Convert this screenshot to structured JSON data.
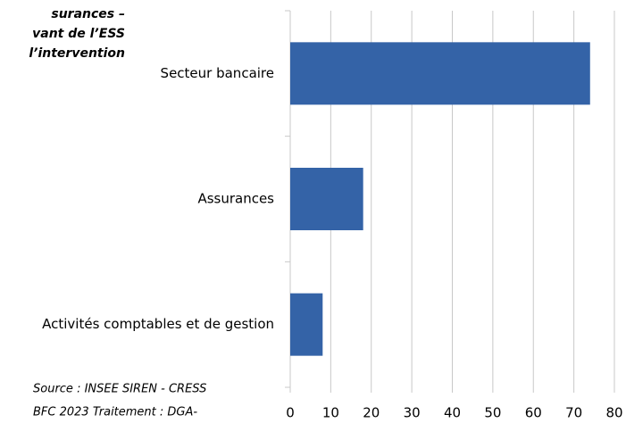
{
  "chart_data": {
    "type": "barh",
    "title_lines": [
      "surances –",
      "vant de l’ESS",
      "l’intervention"
    ],
    "source_lines": [
      "Source : INSEE SIREN -  CRESS",
      "BFC 2023 Traitement : DGA-"
    ],
    "categories": [
      "Secteur bancaire",
      "Assurances",
      "Activités comptables et de gestion"
    ],
    "values": [
      74,
      18,
      8
    ],
    "color": "#3463a7",
    "xlim": [
      0,
      80
    ],
    "xticks": [
      0,
      10,
      20,
      30,
      40,
      50,
      60,
      70,
      80
    ],
    "grid": true
  }
}
